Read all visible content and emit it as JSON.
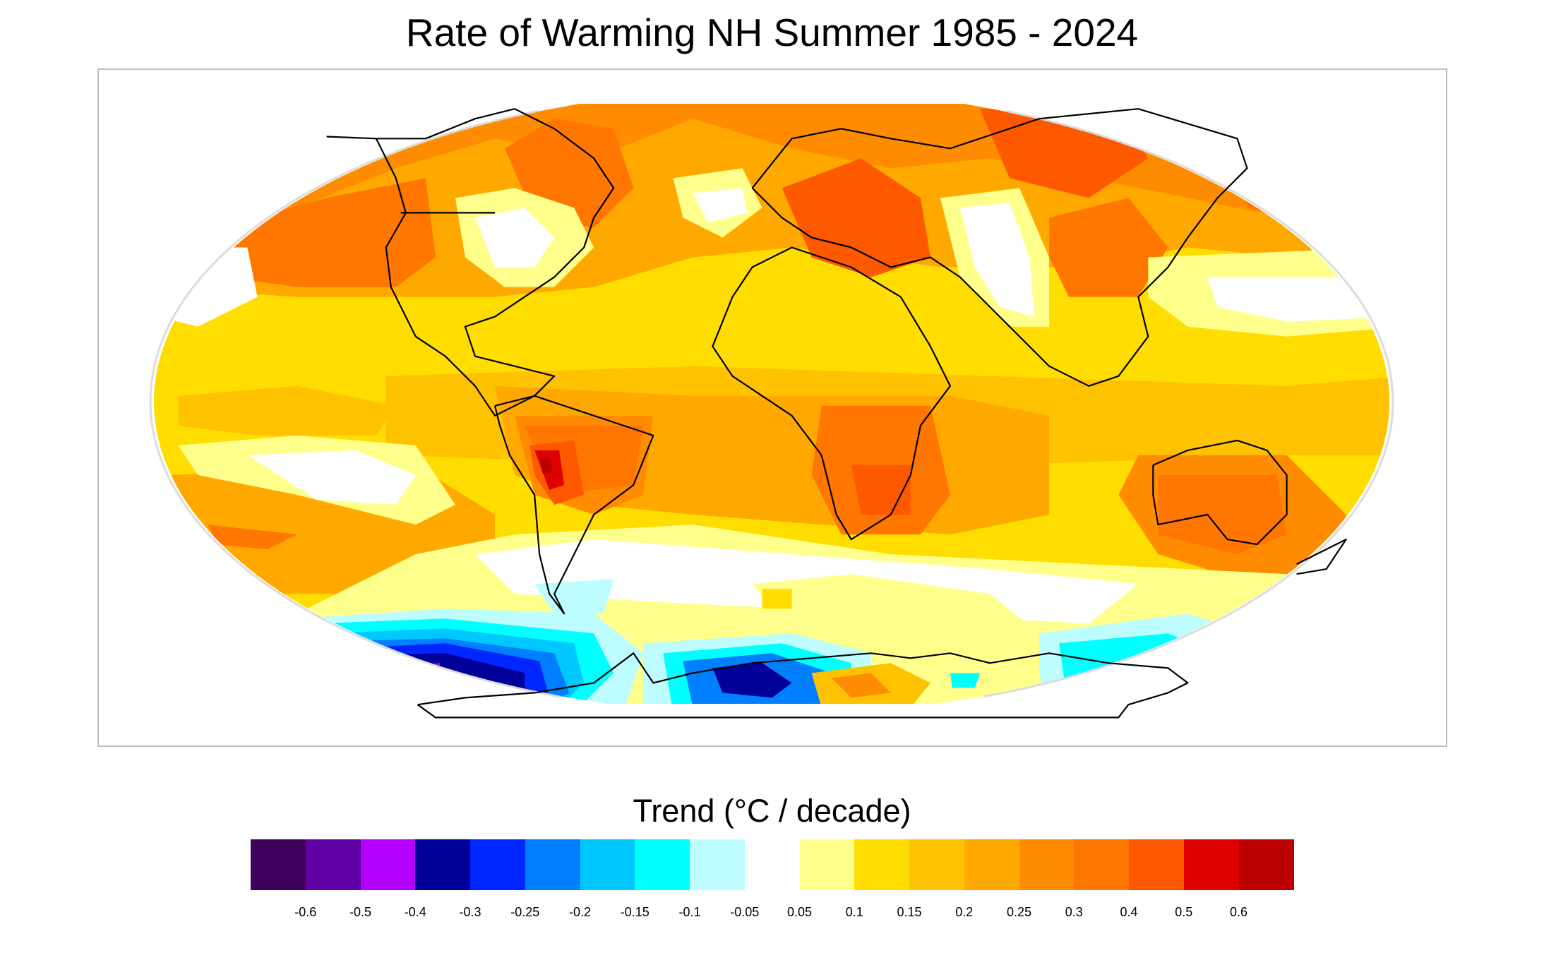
{
  "title": "Rate of Warming NH Summer 1985 - 2024",
  "map": {
    "projection": "Robinson",
    "field": "temperature trend",
    "regions": [
      {
        "name": "eastern-europe",
        "level": 0.4
      },
      {
        "name": "central-andes",
        "level": 0.6
      },
      {
        "name": "southern-africa",
        "level": 0.4
      },
      {
        "name": "australia",
        "level": 0.3
      },
      {
        "name": "eastern-us",
        "level": 0.0
      },
      {
        "name": "central-asia",
        "level": 0.0
      },
      {
        "name": "north-pacific-east-of-japan",
        "level": 0.0
      },
      {
        "name": "south-atlantic",
        "level": 0.0
      },
      {
        "name": "amundsen-bellingshausen-sea",
        "level": -0.4
      },
      {
        "name": "ross-sea-coast",
        "level": -0.5
      },
      {
        "name": "east-antarctica-coast",
        "level": -0.3
      },
      {
        "name": "weddell-sea-interior",
        "level": 0.25
      }
    ]
  },
  "legend": {
    "title": "Trend (°C / decade)",
    "colors": [
      "#3f005c",
      "#6100a5",
      "#b400ff",
      "#000099",
      "#0026ff",
      "#007fff",
      "#00c8ff",
      "#00ffff",
      "#bdfdff",
      "#ffffff",
      "#ffff8c",
      "#ffdd00",
      "#ffc200",
      "#ffa800",
      "#ff8c00",
      "#ff7600",
      "#ff5900",
      "#df0000",
      "#bb0000"
    ],
    "ticks": [
      "-0.6",
      "-0.5",
      "-0.4",
      "-0.3",
      "-0.25",
      "-0.2",
      "-0.15",
      "-0.1",
      "-0.05",
      "0.05",
      "0.1",
      "0.15",
      "0.2",
      "0.25",
      "0.3",
      "0.4",
      "0.5",
      "0.6"
    ]
  }
}
